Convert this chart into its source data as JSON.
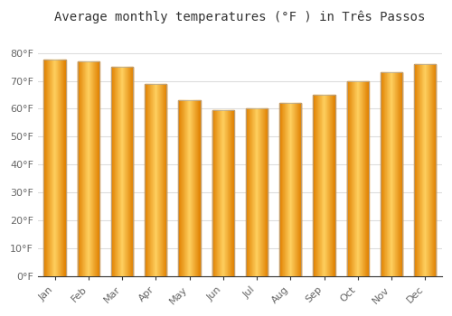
{
  "months": [
    "Jan",
    "Feb",
    "Mar",
    "Apr",
    "May",
    "Jun",
    "Jul",
    "Aug",
    "Sep",
    "Oct",
    "Nov",
    "Dec"
  ],
  "values": [
    77.5,
    77.0,
    75.0,
    69.0,
    63.0,
    59.5,
    60.0,
    62.0,
    65.0,
    70.0,
    73.0,
    76.0
  ],
  "bar_color": "#FFA500",
  "bar_edge_color": "#B8860B",
  "title": "Average monthly temperatures (°F ) in Três Passos",
  "ylim": [
    0,
    88
  ],
  "yticks": [
    0,
    10,
    20,
    30,
    40,
    50,
    60,
    70,
    80
  ],
  "ytick_labels": [
    "0°F",
    "10°F",
    "20°F",
    "30°F",
    "40°F",
    "50°F",
    "60°F",
    "70°F",
    "80°F"
  ],
  "background_color": "#FFFFFF",
  "plot_bg_color": "#FFFFFF",
  "grid_color": "#DDDDDD",
  "title_fontsize": 10,
  "tick_fontsize": 8,
  "bar_width": 0.65,
  "tick_color": "#666666",
  "spine_color": "#333333"
}
